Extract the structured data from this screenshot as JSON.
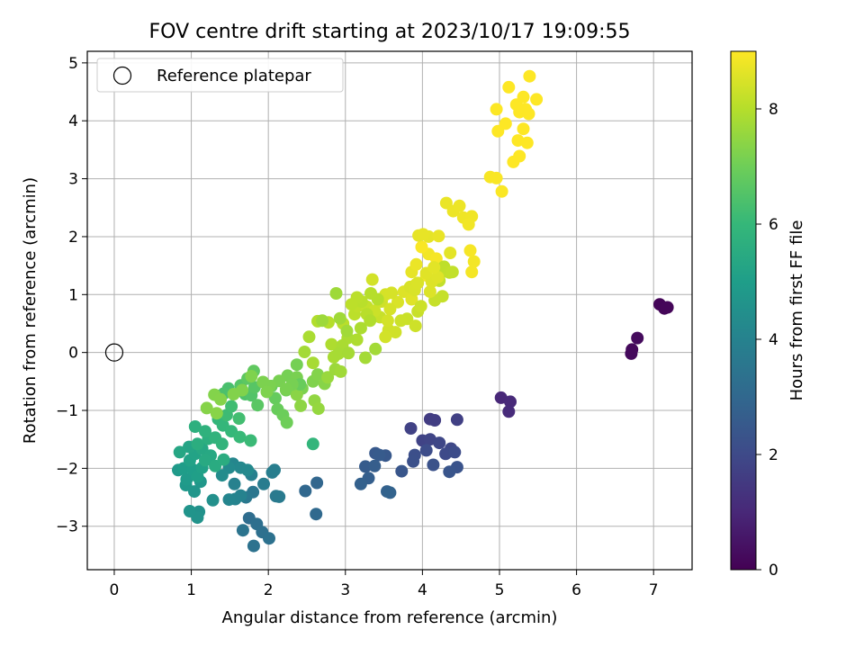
{
  "chart_data": {
    "type": "scatter",
    "title": "FOV centre drift starting at 2023/10/17 19:09:55",
    "xlabel": "Angular distance from reference (arcmin)",
    "ylabel": "Rotation from reference (arcmin)",
    "xlim": [
      -0.35,
      7.5
    ],
    "ylim": [
      -3.75,
      5.2
    ],
    "xticks": [
      0,
      1,
      2,
      3,
      4,
      5,
      6,
      7
    ],
    "yticks": [
      -3,
      -2,
      -1,
      0,
      1,
      2,
      3,
      4,
      5
    ],
    "grid": true,
    "legend": {
      "placement": "top-left",
      "entries": [
        "Reference platepar"
      ]
    },
    "reference_point": {
      "label": "Reference platepar",
      "x": 0,
      "y": 0,
      "marker": "hollow-circle"
    },
    "colorbar": {
      "label": "Hours from first FF file",
      "colormap": "viridis",
      "range": [
        0,
        9
      ],
      "ticks": [
        0,
        2,
        4,
        6,
        8
      ]
    },
    "points": [
      [
        7.08,
        0.83,
        0.1
      ],
      [
        7.14,
        0.76,
        0.12
      ],
      [
        7.18,
        0.78,
        0.14
      ],
      [
        6.72,
        0.05,
        0.2
      ],
      [
        6.71,
        -0.02,
        0.22
      ],
      [
        6.79,
        0.25,
        0.25
      ],
      [
        5.02,
        -0.78,
        1.0
      ],
      [
        5.14,
        -0.85,
        1.05
      ],
      [
        5.12,
        -1.02,
        1.1
      ],
      [
        4.1,
        -1.15,
        1.6
      ],
      [
        4.16,
        -1.17,
        1.65
      ],
      [
        4.45,
        -1.16,
        1.7
      ],
      [
        3.85,
        -1.31,
        1.75
      ],
      [
        4.0,
        -1.52,
        1.8
      ],
      [
        4.1,
        -1.5,
        1.85
      ],
      [
        4.22,
        -1.56,
        1.9
      ],
      [
        4.37,
        -1.66,
        1.95
      ],
      [
        4.3,
        -1.75,
        2.0
      ],
      [
        4.42,
        -1.72,
        2.05
      ],
      [
        4.05,
        -1.69,
        2.1
      ],
      [
        3.9,
        -1.77,
        2.15
      ],
      [
        3.88,
        -1.88,
        2.2
      ],
      [
        4.14,
        -1.94,
        2.25
      ],
      [
        4.45,
        -1.98,
        2.3
      ],
      [
        4.35,
        -2.06,
        2.35
      ],
      [
        3.73,
        -2.05,
        2.4
      ],
      [
        3.52,
        -1.78,
        2.45
      ],
      [
        3.39,
        -1.74,
        2.5
      ],
      [
        3.44,
        -1.77,
        2.55
      ],
      [
        3.26,
        -1.97,
        2.6
      ],
      [
        3.38,
        -1.96,
        2.65
      ],
      [
        3.3,
        -2.17,
        2.7
      ],
      [
        3.2,
        -2.27,
        2.75
      ],
      [
        3.54,
        -2.4,
        2.8
      ],
      [
        3.58,
        -2.42,
        2.85
      ],
      [
        2.63,
        -2.25,
        2.95
      ],
      [
        2.48,
        -2.39,
        3.0
      ],
      [
        2.62,
        -2.79,
        3.05
      ],
      [
        1.75,
        -2.86,
        3.2
      ],
      [
        1.85,
        -2.96,
        3.25
      ],
      [
        1.92,
        -3.1,
        3.3
      ],
      [
        2.01,
        -3.21,
        3.35
      ],
      [
        1.81,
        -3.34,
        3.4
      ],
      [
        1.67,
        -3.07,
        3.45
      ],
      [
        1.8,
        -2.41,
        3.55
      ],
      [
        1.71,
        -2.5,
        3.6
      ],
      [
        2.1,
        -2.48,
        3.65
      ],
      [
        2.14,
        -2.49,
        3.7
      ],
      [
        1.94,
        -2.27,
        3.75
      ],
      [
        2.05,
        -2.07,
        3.8
      ],
      [
        2.08,
        -2.03,
        3.85
      ],
      [
        1.78,
        -2.11,
        3.9
      ],
      [
        1.56,
        -2.27,
        3.95
      ],
      [
        1.64,
        -2.47,
        4.0
      ],
      [
        1.57,
        -2.53,
        4.05
      ],
      [
        1.49,
        -2.54,
        4.1
      ],
      [
        1.54,
        -1.92,
        4.15
      ],
      [
        1.64,
        -1.99,
        4.2
      ],
      [
        1.73,
        -2.03,
        4.25
      ],
      [
        1.49,
        -1.99,
        4.3
      ],
      [
        1.4,
        -2.12,
        4.35
      ],
      [
        1.28,
        -2.55,
        4.5
      ],
      [
        1.1,
        -2.75,
        4.55
      ],
      [
        1.08,
        -2.85,
        4.6
      ],
      [
        0.98,
        -2.74,
        4.65
      ],
      [
        1.04,
        -2.4,
        4.7
      ],
      [
        1.12,
        -2.23,
        4.75
      ],
      [
        0.93,
        -2.29,
        4.8
      ],
      [
        0.83,
        -2.03,
        4.85
      ],
      [
        0.94,
        -2.19,
        4.9
      ],
      [
        0.9,
        -2.0,
        4.95
      ],
      [
        1.02,
        -2.02,
        5.0
      ],
      [
        1.08,
        -2.14,
        5.05
      ],
      [
        1.14,
        -1.99,
        5.1
      ],
      [
        0.98,
        -1.86,
        5.15
      ],
      [
        1.05,
        -1.75,
        5.2
      ],
      [
        0.97,
        -1.63,
        5.25
      ],
      [
        0.85,
        -1.72,
        5.3
      ],
      [
        1.14,
        -1.66,
        5.35
      ],
      [
        1.25,
        -1.78,
        5.4
      ],
      [
        1.18,
        -1.86,
        5.45
      ],
      [
        1.31,
        -1.96,
        5.5
      ],
      [
        1.42,
        -1.85,
        5.55
      ],
      [
        1.08,
        -1.58,
        5.6
      ],
      [
        1.22,
        -1.49,
        5.65
      ],
      [
        1.05,
        -1.28,
        5.7
      ],
      [
        1.18,
        -1.36,
        5.75
      ],
      [
        1.31,
        -1.47,
        5.8
      ],
      [
        1.4,
        -1.58,
        5.85
      ],
      [
        1.35,
        -1.15,
        5.9
      ],
      [
        1.41,
        -1.26,
        5.95
      ],
      [
        1.52,
        -1.36,
        6.0
      ],
      [
        1.63,
        -1.46,
        6.05
      ],
      [
        1.77,
        -1.52,
        6.1
      ],
      [
        1.46,
        -1.08,
        6.15
      ],
      [
        1.52,
        -0.93,
        6.2
      ],
      [
        1.62,
        -1.14,
        6.25
      ],
      [
        1.36,
        -0.75,
        6.3
      ],
      [
        1.48,
        -0.62,
        6.35
      ],
      [
        1.42,
        -0.71,
        6.4
      ],
      [
        1.7,
        -0.72,
        6.45
      ],
      [
        1.78,
        -0.74,
        6.5
      ],
      [
        1.64,
        -0.57,
        6.55
      ],
      [
        1.82,
        -0.6,
        6.6
      ],
      [
        1.86,
        -0.91,
        6.65
      ],
      [
        1.73,
        -0.45,
        6.7
      ],
      [
        1.81,
        -0.32,
        6.75
      ],
      [
        2.04,
        -0.58,
        6.8
      ],
      [
        2.09,
        -0.79,
        6.85
      ],
      [
        2.12,
        -0.98,
        6.9
      ],
      [
        2.19,
        -1.08,
        6.95
      ],
      [
        2.24,
        -1.21,
        7.0
      ],
      [
        2.23,
        -0.65,
        7.05
      ],
      [
        2.25,
        -0.4,
        7.1
      ],
      [
        2.37,
        -0.43,
        7.15
      ],
      [
        2.44,
        -0.62,
        7.2
      ],
      [
        2.58,
        -0.5,
        7.25
      ],
      [
        2.64,
        -0.38,
        7.3
      ],
      [
        2.73,
        -0.54,
        7.35
      ],
      [
        2.37,
        -0.73,
        7.4
      ],
      [
        2.42,
        -0.92,
        7.45
      ],
      [
        2.6,
        -0.83,
        7.5
      ],
      [
        2.65,
        -0.97,
        7.55
      ],
      [
        2.77,
        -0.43,
        7.6
      ],
      [
        2.87,
        -0.29,
        7.65
      ],
      [
        2.94,
        -0.33,
        7.7
      ],
      [
        2.47,
        0.01,
        7.75
      ],
      [
        2.58,
        -0.18,
        7.8
      ],
      [
        2.53,
        0.27,
        7.85
      ],
      [
        2.82,
        0.14,
        7.9
      ],
      [
        2.64,
        0.54,
        7.95
      ],
      [
        2.78,
        0.52,
        8.0
      ],
      [
        2.97,
        0.5,
        8.05
      ],
      [
        3.12,
        0.66,
        8.1
      ],
      [
        3.16,
        0.8,
        8.15
      ],
      [
        3.28,
        0.79,
        8.2
      ],
      [
        3.45,
        0.61,
        8.25
      ],
      [
        3.38,
        0.72,
        8.3
      ],
      [
        3.47,
        0.88,
        8.35
      ],
      [
        3.35,
        1.26,
        8.4
      ],
      [
        3.52,
        1.0,
        8.45
      ],
      [
        3.68,
        0.87,
        8.5
      ],
      [
        3.76,
        1.05,
        8.55
      ],
      [
        3.86,
        0.92,
        8.6
      ],
      [
        3.92,
        1.18,
        8.65
      ],
      [
        3.86,
        1.39,
        8.7
      ],
      [
        3.92,
        1.52,
        8.75
      ],
      [
        4.05,
        1.33,
        8.8
      ],
      [
        4.08,
        1.7,
        8.85
      ],
      [
        4.18,
        1.62,
        8.9
      ],
      [
        3.99,
        1.82,
        8.95
      ],
      [
        4.23,
        1.4,
        8.1
      ],
      [
        4.28,
        1.48,
        8.12
      ],
      [
        4.26,
        1.39,
        8.14
      ],
      [
        4.35,
        1.38,
        8.16
      ],
      [
        4.39,
        1.39,
        8.18
      ],
      [
        4.22,
        1.24,
        8.2
      ],
      [
        4.26,
        0.97,
        8.22
      ],
      [
        4.16,
        0.9,
        8.24
      ],
      [
        3.94,
        0.71,
        8.26
      ],
      [
        3.8,
        0.58,
        8.28
      ],
      [
        3.72,
        0.55,
        8.3
      ],
      [
        3.98,
        0.8,
        8.32
      ],
      [
        3.91,
        0.46,
        8.34
      ],
      [
        3.65,
        0.35,
        8.36
      ],
      [
        3.56,
        0.39,
        8.38
      ],
      [
        3.52,
        0.27,
        8.4
      ],
      [
        3.55,
        0.55,
        8.42
      ],
      [
        3.58,
        0.75,
        8.44
      ],
      [
        3.6,
        1.03,
        8.46
      ],
      [
        3.84,
        1.13,
        8.48
      ],
      [
        3.9,
        1.08,
        8.5
      ],
      [
        3.94,
        1.2,
        8.52
      ],
      [
        4.1,
        1.05,
        8.54
      ],
      [
        4.12,
        1.22,
        8.56
      ],
      [
        4.2,
        1.3,
        8.58
      ],
      [
        4.05,
        1.37,
        8.6
      ],
      [
        4.15,
        1.47,
        8.62
      ],
      [
        4.36,
        1.72,
        8.64
      ],
      [
        4.08,
        2.0,
        8.66
      ],
      [
        3.95,
        2.02,
        8.68
      ],
      [
        4.01,
        2.04,
        8.7
      ],
      [
        4.21,
        2.01,
        8.72
      ],
      [
        4.31,
        2.58,
        8.74
      ],
      [
        4.4,
        2.44,
        8.76
      ],
      [
        4.48,
        2.53,
        8.78
      ],
      [
        4.53,
        2.33,
        8.8
      ],
      [
        4.64,
        2.35,
        8.82
      ],
      [
        4.6,
        2.21,
        8.84
      ],
      [
        4.67,
        1.57,
        8.86
      ],
      [
        4.64,
        1.39,
        8.88
      ],
      [
        4.62,
        1.76,
        8.9
      ],
      [
        4.88,
        3.03,
        8.92
      ],
      [
        4.96,
        3.01,
        8.94
      ],
      [
        5.03,
        2.78,
        8.96
      ],
      [
        4.96,
        4.2,
        8.98
      ],
      [
        5.08,
        3.95,
        9.0
      ],
      [
        4.98,
        3.82,
        9.0
      ],
      [
        5.12,
        4.58,
        9.0
      ],
      [
        5.22,
        4.28,
        9.0
      ],
      [
        5.26,
        4.15,
        9.0
      ],
      [
        5.31,
        4.41,
        9.0
      ],
      [
        5.39,
        4.77,
        9.0
      ],
      [
        5.34,
        4.2,
        9.0
      ],
      [
        5.38,
        4.12,
        9.0
      ],
      [
        5.48,
        4.37,
        9.0
      ],
      [
        5.31,
        3.86,
        9.0
      ],
      [
        5.24,
        3.66,
        9.0
      ],
      [
        5.36,
        3.62,
        9.0
      ],
      [
        5.26,
        3.39,
        9.0
      ],
      [
        5.18,
        3.29,
        9.0
      ],
      [
        3.42,
        0.92,
        8.0
      ],
      [
        3.33,
        1.02,
        8.02
      ],
      [
        3.28,
        0.66,
        8.04
      ],
      [
        3.21,
        0.88,
        8.06
      ],
      [
        3.15,
        0.95,
        8.08
      ],
      [
        3.08,
        0.83,
        8.1
      ],
      [
        3.32,
        0.55,
        7.95
      ],
      [
        3.15,
        0.22,
        7.9
      ],
      [
        3.2,
        0.42,
        7.88
      ],
      [
        3.03,
        0.25,
        7.86
      ],
      [
        2.96,
        0.12,
        7.84
      ],
      [
        2.85,
        -0.08,
        7.82
      ],
      [
        2.91,
        -0.02,
        7.8
      ],
      [
        3.04,
        -0.01,
        7.78
      ],
      [
        3.26,
        -0.09,
        7.76
      ],
      [
        3.39,
        0.06,
        7.74
      ],
      [
        3.02,
        0.37,
        7.72
      ],
      [
        2.93,
        0.59,
        7.7
      ],
      [
        2.88,
        1.02,
        7.68
      ],
      [
        2.7,
        0.55,
        7.66
      ],
      [
        2.58,
        -1.58,
        5.9
      ],
      [
        2.41,
        -0.55,
        6.9
      ],
      [
        2.37,
        -0.21,
        7.1
      ],
      [
        2.31,
        -0.55,
        7.12
      ],
      [
        2.14,
        -0.49,
        7.14
      ],
      [
        2.23,
        -0.63,
        7.16
      ],
      [
        2.02,
        -0.58,
        7.18
      ],
      [
        1.93,
        -0.51,
        7.2
      ],
      [
        1.98,
        -0.68,
        7.22
      ],
      [
        1.78,
        -0.41,
        7.24
      ],
      [
        1.66,
        -0.65,
        7.26
      ],
      [
        1.55,
        -0.72,
        7.28
      ],
      [
        1.3,
        -0.73,
        7.3
      ],
      [
        1.38,
        -0.81,
        7.32
      ],
      [
        1.2,
        -0.96,
        7.34
      ],
      [
        1.33,
        -1.05,
        7.36
      ]
    ]
  }
}
